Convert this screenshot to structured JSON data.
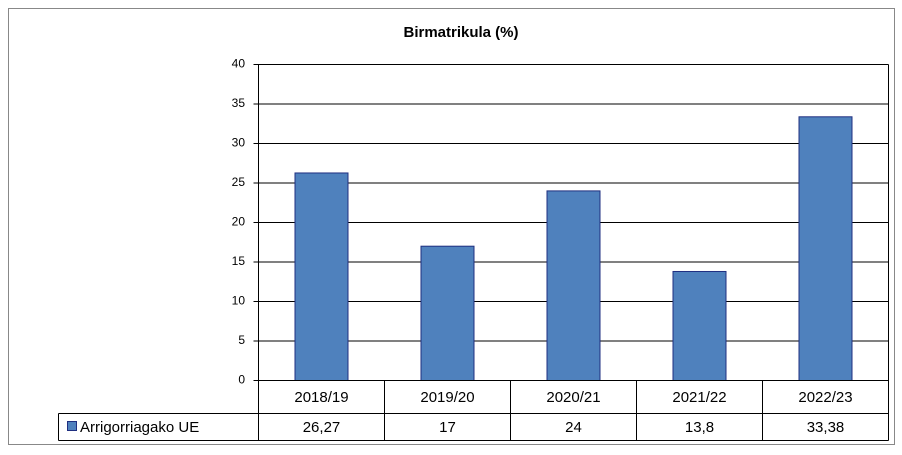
{
  "chart_data": {
    "type": "bar",
    "title": "Birmatrikula (%)",
    "categories": [
      "2018/19",
      "2019/20",
      "2020/21",
      "2021/22",
      "2022/23"
    ],
    "series": [
      {
        "name": "Arrigorriagako UE",
        "color": "#4f81bd",
        "values": [
          26.27,
          17,
          24,
          13.8,
          33.38
        ],
        "value_labels": [
          "26,27",
          "17",
          "24",
          "13,8",
          "33,38"
        ]
      }
    ],
    "ylim": [
      0,
      40
    ],
    "yticks": [
      0,
      5,
      10,
      15,
      20,
      25,
      30,
      35,
      40
    ],
    "grid": true,
    "data_table": true
  }
}
